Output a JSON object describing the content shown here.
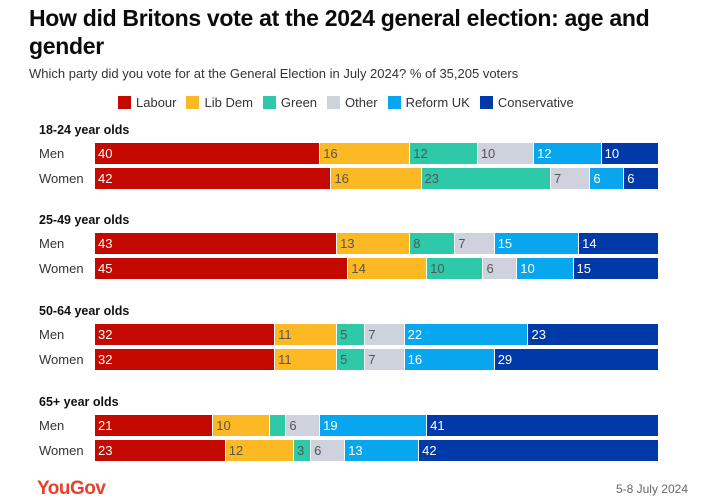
{
  "header": {
    "title": "How did Britons vote at the 2024 general election: age and gender",
    "subtitle": "Which party did you vote for at the General Election in July 2024? % of 35,205 voters"
  },
  "footer": {
    "logo": "YouGov",
    "date": "5-8 July 2024"
  },
  "chart_data": {
    "type": "bar",
    "stacked": true,
    "orientation": "horizontal",
    "title": "How did Britons vote at the 2024 general election: age and gender",
    "subtitle": "Which party did you vote for at the General Election in July 2024? % of 35,205 voters",
    "legend_position": "top",
    "series": [
      {
        "name": "Labour",
        "color": "#c40a00",
        "label_color": "#ffffff"
      },
      {
        "name": "Lib Dem",
        "color": "#fdb924",
        "label_color": "#555555"
      },
      {
        "name": "Green",
        "color": "#2ec9a8",
        "label_color": "#555555"
      },
      {
        "name": "Other",
        "color": "#ced2dc",
        "label_color": "#555555"
      },
      {
        "name": "Reform UK",
        "color": "#07a6ef",
        "label_color": "#ffffff"
      },
      {
        "name": "Conservative",
        "color": "#0039a8",
        "label_color": "#ffffff"
      }
    ],
    "groups": [
      {
        "title": "18-24 year olds",
        "rows": [
          {
            "label": "Men",
            "values": [
              40,
              16,
              12,
              10,
              12,
              10
            ],
            "labels": [
              "40",
              "16",
              "12",
              "10",
              "12",
              "10"
            ]
          },
          {
            "label": "Women",
            "values": [
              42,
              16,
              23,
              7,
              6,
              6
            ],
            "labels": [
              "42",
              "16",
              "23",
              "7",
              "6",
              "6"
            ]
          }
        ]
      },
      {
        "title": "25-49 year olds",
        "rows": [
          {
            "label": "Men",
            "values": [
              43,
              13,
              8,
              7,
              15,
              14
            ],
            "labels": [
              "43",
              "13",
              "8",
              "7",
              "15",
              "14"
            ]
          },
          {
            "label": "Women",
            "values": [
              45,
              14,
              10,
              6,
              10,
              15
            ],
            "labels": [
              "45",
              "14",
              "10",
              "6",
              "10",
              "15"
            ]
          }
        ]
      },
      {
        "title": "50-64 year olds",
        "rows": [
          {
            "label": "Men",
            "values": [
              32,
              11,
              5,
              7,
              22,
              23
            ],
            "labels": [
              "32",
              "11",
              "5",
              "7",
              "22",
              "23"
            ]
          },
          {
            "label": "Women",
            "values": [
              32,
              11,
              5,
              7,
              16,
              29
            ],
            "labels": [
              "32",
              "11",
              "5",
              "7",
              "16",
              "29"
            ]
          }
        ]
      },
      {
        "title": "65+ year olds",
        "rows": [
          {
            "label": "Men",
            "values": [
              21,
              10,
              3,
              6,
              19,
              41
            ],
            "labels": [
              "21",
              "10",
              "",
              "6",
              "19",
              "41"
            ]
          },
          {
            "label": "Women",
            "values": [
              23,
              12,
              3,
              6,
              13,
              42
            ],
            "labels": [
              "23",
              "12",
              "3",
              "6",
              "13",
              "42"
            ]
          }
        ]
      }
    ]
  }
}
